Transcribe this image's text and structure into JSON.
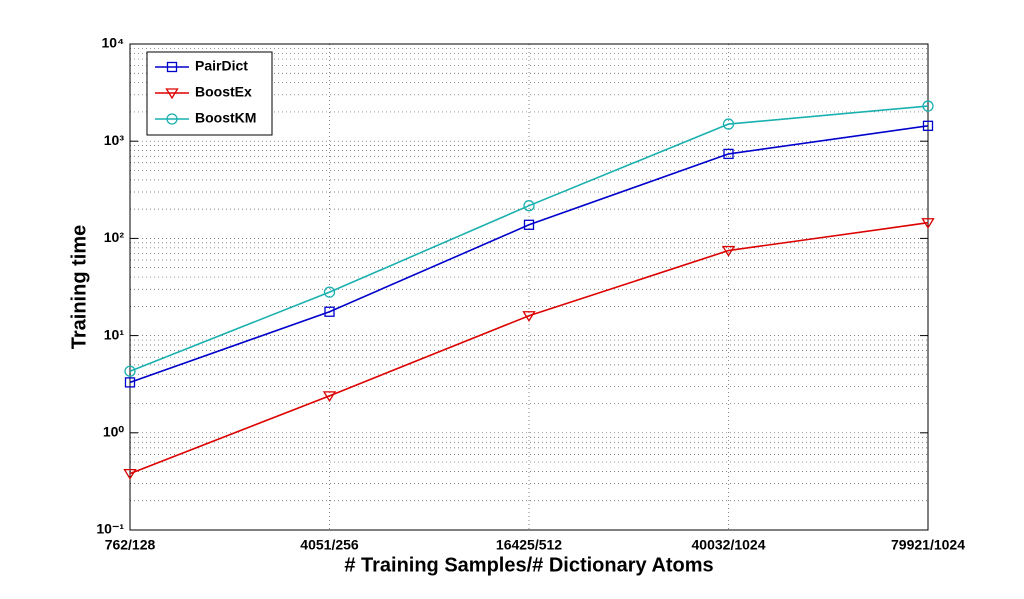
{
  "chart_data": {
    "type": "line",
    "xlabel": "# Training Samples/# Dictionary Atoms",
    "ylabel": "Training time",
    "categories": [
      "762/128",
      "4051/256",
      "16425/512",
      "40032/1024",
      "79921/1024"
    ],
    "series": [
      {
        "name": "PairDict",
        "color": "#0000cc",
        "marker": "square",
        "values": [
          3.3,
          17.6,
          138,
          740,
          1440
        ]
      },
      {
        "name": "BoostEx",
        "color": "#dd0000",
        "marker": "triangle-down",
        "values": [
          0.38,
          2.4,
          16,
          75,
          145
        ]
      },
      {
        "name": "BoostKM",
        "color": "#1ab0b0",
        "marker": "circle",
        "values": [
          4.3,
          28,
          217,
          1500,
          2300
        ]
      }
    ],
    "ylim": [
      0.1,
      10000
    ],
    "yticks": [
      {
        "value": 0.1,
        "label": "10⁻¹"
      },
      {
        "value": 1,
        "label": "10⁰"
      },
      {
        "value": 10,
        "label": "10¹"
      },
      {
        "value": 100,
        "label": "10²"
      },
      {
        "value": 1000,
        "label": "10³"
      },
      {
        "value": 10000,
        "label": "10⁴"
      }
    ],
    "ylog": true,
    "grid": true,
    "legend": "upper left"
  }
}
